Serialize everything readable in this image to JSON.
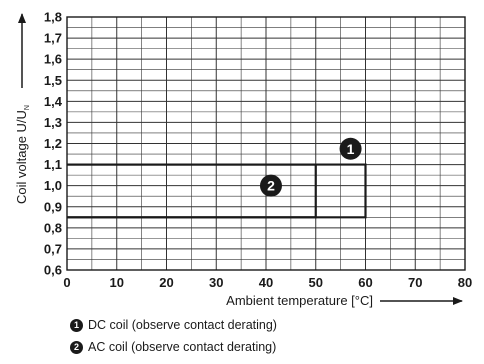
{
  "chart_data": {
    "type": "line",
    "xlabel": "Ambient temperature [°C]",
    "ylabel": "Coil voltage U/U",
    "ylabel_sub": "N",
    "xlim": [
      0,
      80
    ],
    "ylim": [
      0.6,
      1.8
    ],
    "x_ticks": [
      "0",
      "10",
      "20",
      "30",
      "40",
      "50",
      "60",
      "70",
      "80"
    ],
    "y_ticks": [
      "0,6",
      "0,7",
      "0,8",
      "0,9",
      "1,0",
      "1,1",
      "1,2",
      "1,3",
      "1,4",
      "1,5",
      "1,6",
      "1,7",
      "1,8"
    ],
    "x_minor_step": 5,
    "y_step": 0.05,
    "grid": true,
    "series": [
      {
        "marker": "1",
        "points": [
          [
            0,
            0.85
          ],
          [
            60,
            0.85
          ],
          [
            60,
            1.1
          ],
          [
            0,
            1.1
          ]
        ]
      },
      {
        "marker": "2",
        "points": [
          [
            0,
            0.85
          ],
          [
            50,
            0.85
          ],
          [
            50,
            1.1
          ],
          [
            0,
            1.1
          ]
        ]
      }
    ],
    "markers": [
      {
        "label": "1",
        "x": 57,
        "y": 1.175
      },
      {
        "label": "2",
        "x": 41,
        "y": 1.0
      }
    ]
  },
  "legend": [
    {
      "marker": "1",
      "text": "DC coil (observe contact derating)"
    },
    {
      "marker": "2",
      "text": "AC coil (observe contact derating)"
    }
  ]
}
